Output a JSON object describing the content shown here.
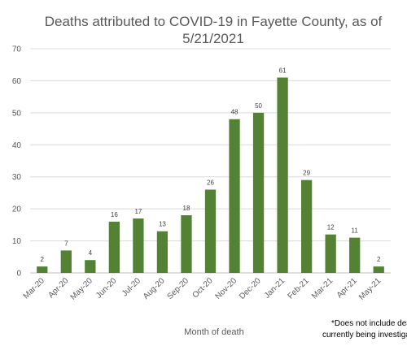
{
  "chart_data": {
    "type": "bar",
    "title_lines": [
      "Deaths attributed to COVID-19 in Fayette County, as of",
      "5/21/2021"
    ],
    "xlabel": "Month of death",
    "ylabel": "",
    "ylim": [
      0,
      70
    ],
    "yticks": [
      0,
      10,
      20,
      30,
      40,
      50,
      60,
      70
    ],
    "grid": true,
    "categories": [
      "Mar-20",
      "Apr-20",
      "May-20",
      "Jun-20",
      "Jul-20",
      "Aug-20",
      "Sep-20",
      "Oct-20",
      "Nov-20",
      "Dec-20",
      "Jan-21",
      "Feb-21",
      "Mar-21",
      "Apr-21",
      "May-21"
    ],
    "values": [
      2,
      7,
      4,
      16,
      17,
      13,
      18,
      26,
      48,
      50,
      61,
      29,
      12,
      11,
      2
    ],
    "bar_color": "#548235",
    "footnote_lines": [
      "*Does not include dea",
      "currently being investiga"
    ]
  }
}
